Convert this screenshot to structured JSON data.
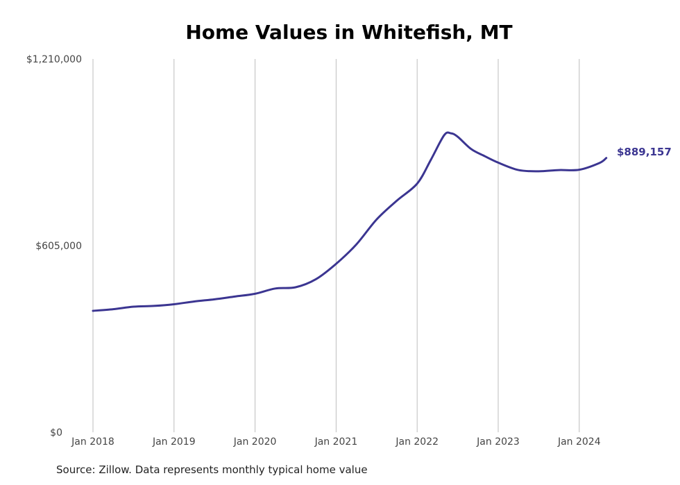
{
  "chart_data": {
    "type": "line",
    "title": "Home Values in Whitefish, MT",
    "xlabel": "",
    "ylabel": "",
    "ylim": [
      0,
      1210000
    ],
    "y_ticks": [
      "$0",
      "$605,000",
      "$1,210,000"
    ],
    "x_ticks": [
      "Jan 2018",
      "Jan 2019",
      "Jan 2020",
      "Jan 2021",
      "Jan 2022",
      "Jan 2023",
      "Jan 2024"
    ],
    "grid": "vertical",
    "line_color": "#3b3591",
    "end_label": "$889,157",
    "series": [
      {
        "name": "Typical home value",
        "x": [
          "2018-01",
          "2018-04",
          "2018-07",
          "2018-10",
          "2019-01",
          "2019-04",
          "2019-07",
          "2019-10",
          "2020-01",
          "2020-04",
          "2020-07",
          "2020-10",
          "2021-01",
          "2021-04",
          "2021-07",
          "2021-10",
          "2022-01",
          "2022-03",
          "2022-05",
          "2022-06",
          "2022-07",
          "2022-09",
          "2022-11",
          "2023-01",
          "2023-04",
          "2023-07",
          "2023-10",
          "2024-01",
          "2024-04",
          "2024-05"
        ],
        "values": [
          393600,
          399000,
          407000,
          409500,
          415000,
          424000,
          431000,
          440000,
          449000,
          466000,
          470000,
          496000,
          546000,
          609000,
          690000,
          751000,
          806000,
          882000,
          963000,
          969000,
          958000,
          918000,
          895000,
          874000,
          850000,
          846000,
          850000,
          851000,
          873000,
          889157
        ]
      }
    ],
    "source": "Source: Zillow. Data represents monthly typical home value"
  }
}
